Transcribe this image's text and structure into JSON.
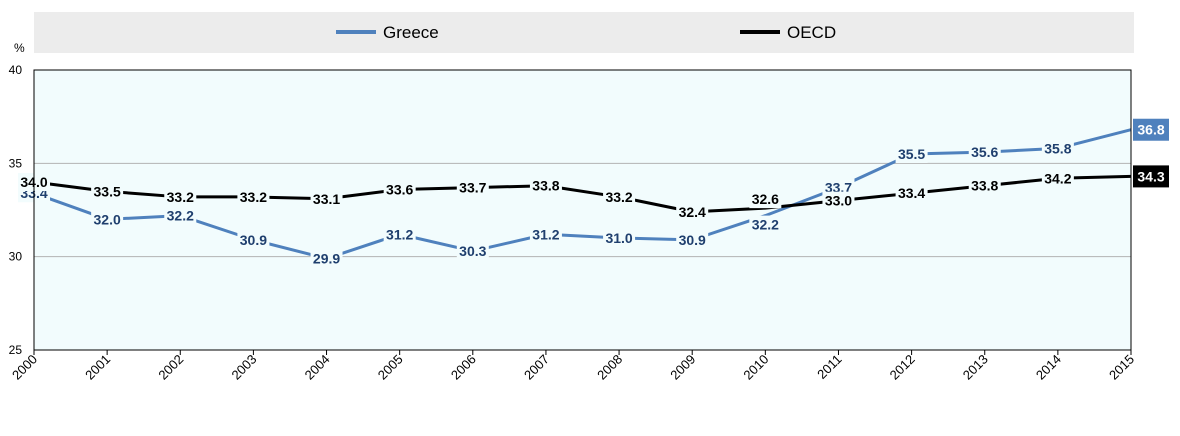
{
  "chart_data": {
    "type": "line",
    "ylabel": "%",
    "ylim": [
      25,
      40
    ],
    "yticks": [
      "25",
      "30",
      "35",
      "40"
    ],
    "x": [
      "2000",
      "2001",
      "2002",
      "2003",
      "2004",
      "2005",
      "2006",
      "2007",
      "2008",
      "2009",
      "2010",
      "2011",
      "2012",
      "2013",
      "2014",
      "2015"
    ],
    "legend_position": "top",
    "series": [
      {
        "name": "Greece",
        "color": "#4f81bd",
        "label_color": "#1f3f6e",
        "values": [
          33.4,
          32.0,
          32.2,
          30.9,
          29.9,
          31.2,
          30.3,
          31.2,
          31.0,
          30.9,
          32.2,
          33.7,
          35.5,
          35.6,
          35.8,
          36.8
        ],
        "labels": [
          "33.4",
          "32.0",
          "32.2",
          "30.9",
          "29.9",
          "31.2",
          "30.3",
          "31.2",
          "31.0",
          "30.9",
          "32.2",
          "33.7",
          "35.5",
          "35.6",
          "35.8",
          "36.8"
        ]
      },
      {
        "name": "OECD",
        "color": "#000000",
        "label_color": "#000000",
        "values": [
          34.0,
          33.5,
          33.2,
          33.2,
          33.1,
          33.6,
          33.7,
          33.8,
          33.2,
          32.4,
          32.6,
          33.0,
          33.4,
          33.8,
          34.2,
          34.3
        ],
        "labels": [
          "34.0",
          "33.5",
          "33.2",
          "33.2",
          "33.1",
          "33.6",
          "33.7",
          "33.8",
          "33.2",
          "32.4",
          "32.6",
          "33.0",
          "33.4",
          "33.8",
          "34.2",
          "34.3"
        ]
      }
    ],
    "colors": {
      "plot_background": "#f2fcfd",
      "legend_background": "#ececec",
      "gridline": "#b3b3b3"
    }
  }
}
